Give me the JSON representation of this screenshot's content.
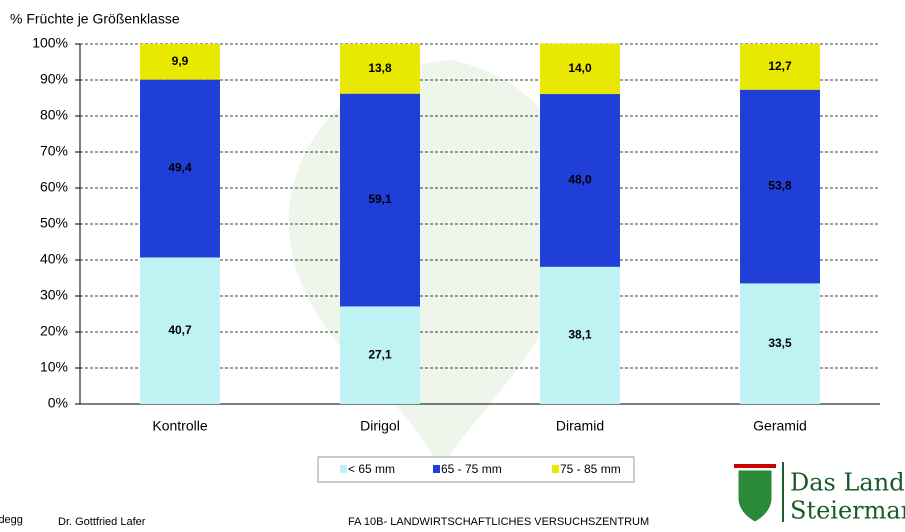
{
  "chart_data": {
    "type": "stacked_bar",
    "y_label": "% Früchte je Größenklasse",
    "categories": [
      "Kontrolle",
      "Dirigol",
      "Diramid",
      "Geramid"
    ],
    "series": [
      {
        "name": "< 65 mm",
        "color": "#bff3f3",
        "values": [
          40.7,
          27.1,
          38.1,
          33.5
        ],
        "value_labels": [
          "40,7",
          "27,1",
          "38,1",
          "33,5"
        ]
      },
      {
        "name": "65 - 75 mm",
        "color": "#1f3fd8",
        "values": [
          49.4,
          59.1,
          48.0,
          53.8
        ],
        "value_labels": [
          "49,4",
          "59,1",
          "48,0",
          "53,8"
        ]
      },
      {
        "name": "75 - 85 mm",
        "color": "#e8e800",
        "values": [
          9.9,
          13.8,
          14.0,
          12.7
        ],
        "value_labels": [
          "9,9",
          "13,8",
          "14,0",
          "12,7"
        ]
      }
    ],
    "ylim": [
      0,
      100
    ],
    "yticks": [
      {
        "value": 0,
        "label": "0%"
      },
      {
        "value": 10,
        "label": "10%"
      },
      {
        "value": 20,
        "label": "20%"
      },
      {
        "value": 30,
        "label": "30%"
      },
      {
        "value": 40,
        "label": "40%"
      },
      {
        "value": 50,
        "label": "50%"
      },
      {
        "value": 60,
        "label": "60%"
      },
      {
        "value": 70,
        "label": "70%"
      },
      {
        "value": 80,
        "label": "80%"
      },
      {
        "value": 90,
        "label": "90%"
      },
      {
        "value": 100,
        "label": "100%"
      }
    ],
    "grid": true
  },
  "footer": {
    "left_fragment": "idegg",
    "author": "Dr. Gottfried Lafer",
    "institution": "FA 10B- LANDWIRTSCHAFTLICHES VERSUCHSZENTRUM",
    "logo_line1": "Das Land",
    "logo_line2": "Steiermark"
  }
}
